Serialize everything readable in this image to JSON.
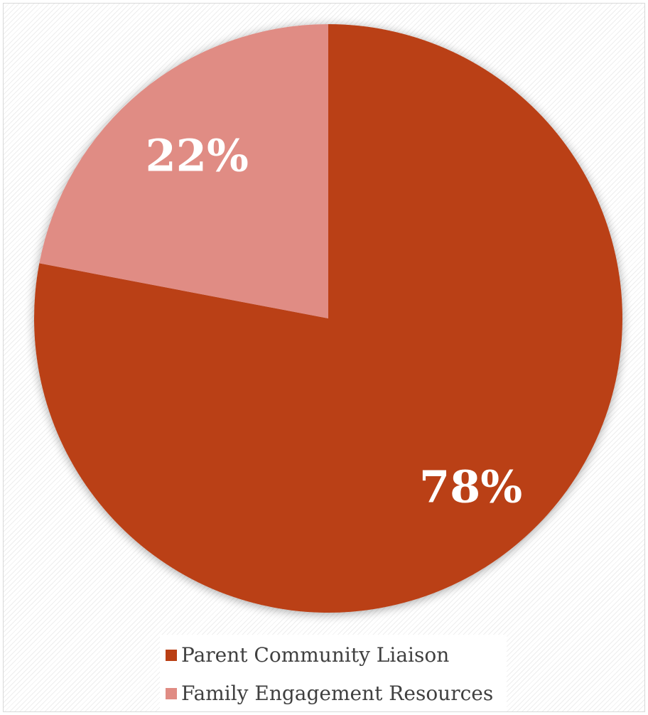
{
  "chart_data": {
    "type": "pie",
    "title": "",
    "start_angle_deg": 0,
    "direction": "clockwise",
    "slices": [
      {
        "name": "Parent Community Liaison",
        "value": 78,
        "label": "78%",
        "color": "#BA3F14"
      },
      {
        "name": "Family Engagement Resources",
        "value": 22,
        "label": "22%",
        "color": "#E08C84"
      }
    ],
    "legend_position": "bottom",
    "data_label_color": "#FFFFFF"
  },
  "legend": {
    "items": [
      {
        "label": "Parent Community Liaison",
        "color": "#BA3F14"
      },
      {
        "label": "Family Engagement Resources",
        "color": "#E08C84"
      }
    ]
  }
}
